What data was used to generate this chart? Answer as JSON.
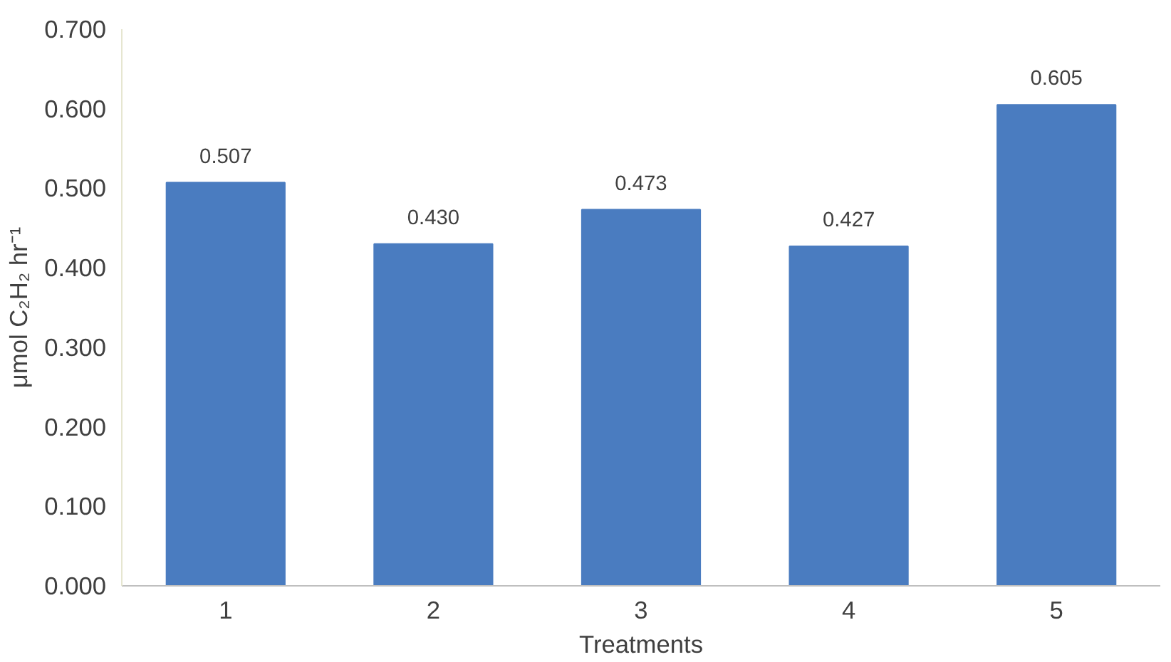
{
  "chart_data": {
    "type": "bar",
    "xlabel": "Treatments",
    "ylabel": "μmol C₂H₂ hr⁻¹",
    "categories": [
      "1",
      "2",
      "3",
      "4",
      "5"
    ],
    "values": [
      0.507,
      0.43,
      0.473,
      0.427,
      0.605
    ],
    "value_labels": [
      "0.507",
      "0.430",
      "0.473",
      "0.427",
      "0.605"
    ],
    "color": "#4a7cc0",
    "ylim": [
      0,
      0.7
    ],
    "yticks": [
      {
        "value": 0,
        "label": "0.000"
      },
      {
        "value": 0.1,
        "label": "0.100"
      },
      {
        "value": 0.2,
        "label": "0.200"
      },
      {
        "value": 0.3,
        "label": "0.300"
      },
      {
        "value": 0.4,
        "label": "0.400"
      },
      {
        "value": 0.5,
        "label": "0.500"
      },
      {
        "value": 0.6,
        "label": "0.600"
      },
      {
        "value": 0.7,
        "label": "0.700"
      }
    ],
    "grid": false
  }
}
